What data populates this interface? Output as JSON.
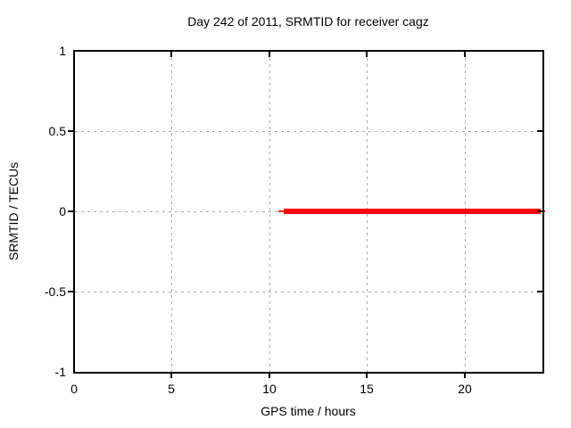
{
  "chart_data": {
    "type": "line",
    "title": "Day 242 of 2011, SRMTID for receiver cagz",
    "xlabel": "GPS time / hours",
    "ylabel": "SRMTID / TECUs",
    "xlim": [
      0,
      24
    ],
    "ylim": [
      -1,
      1
    ],
    "xticks": [
      {
        "label": "0",
        "value": 0
      },
      {
        "label": "5",
        "value": 5
      },
      {
        "label": "10",
        "value": 10
      },
      {
        "label": "15",
        "value": 15
      },
      {
        "label": "20",
        "value": 20
      }
    ],
    "yticks": [
      {
        "label": "1",
        "value": 1
      },
      {
        "label": "0.5",
        "value": 0.5
      },
      {
        "label": "0",
        "value": 0
      },
      {
        "label": "-0.5",
        "value": -0.5
      },
      {
        "label": "-1",
        "value": -1
      }
    ],
    "grid": true,
    "legend": "none",
    "colors": {
      "background": "#ffffff",
      "axis": "#000000",
      "text": "#000000",
      "grid": "#a8a8a8",
      "series": "#ff0000"
    },
    "series": [
      {
        "name": "SRMTID",
        "color": "#ff0000",
        "shape": "horizontal-line",
        "y": 0,
        "x_start": 10.45,
        "x_end": 24.1,
        "core_x_start": 10.75,
        "core_x_end": 23.9,
        "core_thickness_px": 6,
        "cap_thickness_px": 2
      }
    ]
  }
}
